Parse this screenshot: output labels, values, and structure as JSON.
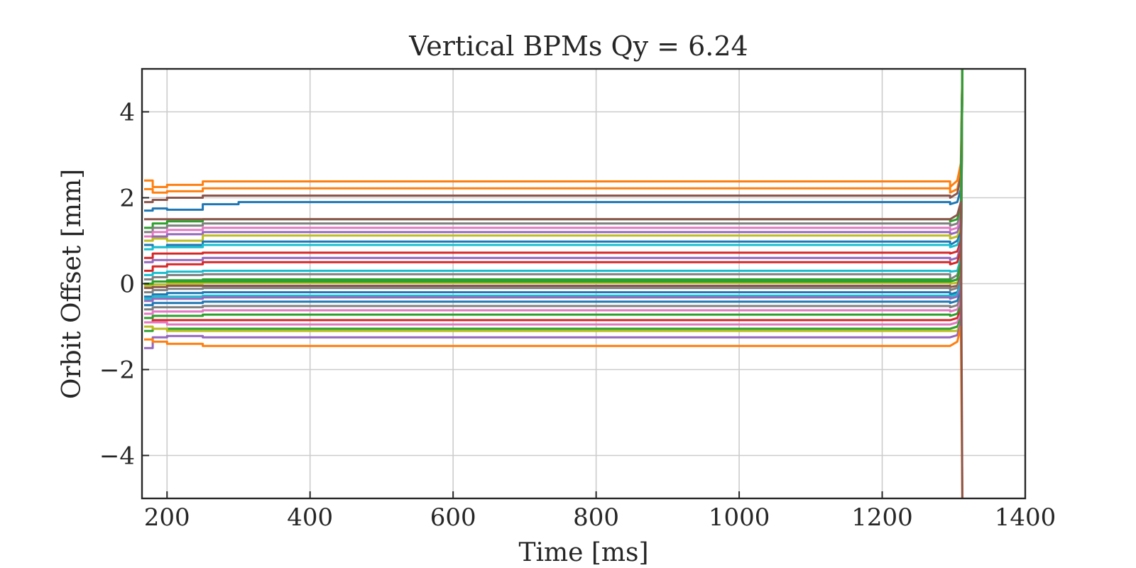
{
  "chart_data": {
    "type": "line",
    "title": "Vertical BPMs Qy = 6.24",
    "xlabel": "Time [ms]",
    "ylabel": "Orbit Offset [mm]",
    "xlim": [
      165,
      1400
    ],
    "ylim": [
      -5,
      5
    ],
    "xticks": [
      200,
      400,
      600,
      800,
      1000,
      1200,
      1400
    ],
    "xtick_labels": [
      "200",
      "400",
      "600",
      "800",
      "1000",
      "1200",
      "1400"
    ],
    "yticks": [
      4,
      2,
      0,
      -2,
      -4
    ],
    "ytick_labels": [
      "4",
      "2",
      "0",
      "−2",
      "−4"
    ],
    "grid": true,
    "legend": "none",
    "x": [
      168,
      180,
      200,
      250,
      300,
      1275,
      1295,
      1305,
      1310,
      1312
    ],
    "series": [
      {
        "color": "#ff7f0e",
        "values": [
          2.4,
          2.25,
          2.3,
          2.38,
          2.38,
          2.38,
          2.25,
          2.4,
          2.8,
          5.0
        ]
      },
      {
        "color": "#ff7f0e",
        "values": [
          2.2,
          2.12,
          2.15,
          2.22,
          2.22,
          2.22,
          2.12,
          2.2,
          2.6,
          5.0
        ]
      },
      {
        "color": "#8c564b",
        "values": [
          1.9,
          1.95,
          2.0,
          2.05,
          2.05,
          2.05,
          2.0,
          2.1,
          2.5,
          5.0
        ]
      },
      {
        "color": "#1f77b4",
        "values": [
          1.7,
          1.75,
          1.72,
          1.85,
          1.9,
          1.9,
          1.85,
          1.9,
          2.2,
          5.0
        ]
      },
      {
        "color": "#2ca02c",
        "values": [
          1.3,
          1.4,
          1.45,
          1.5,
          1.5,
          1.5,
          1.45,
          1.5,
          1.8,
          5.0
        ]
      },
      {
        "color": "#7f7f7f",
        "values": [
          1.2,
          1.3,
          1.35,
          1.4,
          1.4,
          1.4,
          1.35,
          1.4,
          1.6,
          5.0
        ]
      },
      {
        "color": "#e377c2",
        "values": [
          1.1,
          1.2,
          1.25,
          1.3,
          1.3,
          1.3,
          1.25,
          1.3,
          1.5,
          5.0
        ]
      },
      {
        "color": "#9467bd",
        "values": [
          1.0,
          1.1,
          1.15,
          1.2,
          1.2,
          1.2,
          1.15,
          1.2,
          1.4,
          5.0
        ]
      },
      {
        "color": "#bcbd22",
        "values": [
          1.0,
          1.05,
          1.0,
          1.12,
          1.12,
          1.12,
          1.05,
          1.1,
          1.3,
          5.0
        ]
      },
      {
        "color": "#1f77b4",
        "values": [
          0.9,
          0.85,
          0.9,
          0.98,
          0.98,
          0.98,
          0.9,
          1.0,
          1.2,
          5.0
        ]
      },
      {
        "color": "#17becf",
        "values": [
          0.8,
          0.85,
          0.85,
          0.9,
          0.9,
          0.9,
          0.85,
          0.9,
          1.1,
          5.0
        ]
      },
      {
        "color": "#d62728",
        "values": [
          0.6,
          0.7,
          0.7,
          0.72,
          0.72,
          0.72,
          0.7,
          0.75,
          1.0,
          5.0
        ]
      },
      {
        "color": "#9467bd",
        "values": [
          0.5,
          0.55,
          0.55,
          0.6,
          0.6,
          0.6,
          0.55,
          0.6,
          0.9,
          5.0
        ]
      },
      {
        "color": "#d62728",
        "values": [
          0.3,
          0.4,
          0.45,
          0.5,
          0.5,
          0.5,
          0.45,
          0.5,
          0.8,
          5.0
        ]
      },
      {
        "color": "#17becf",
        "values": [
          0.2,
          0.25,
          0.28,
          0.3,
          0.3,
          0.3,
          0.28,
          0.3,
          0.6,
          5.0
        ]
      },
      {
        "color": "#7f7f7f",
        "values": [
          0.1,
          0.15,
          0.2,
          0.22,
          0.22,
          0.22,
          0.1,
          0.2,
          0.5,
          5.0
        ]
      },
      {
        "color": "#2ca02c",
        "values": [
          0.0,
          0.05,
          0.08,
          0.1,
          0.1,
          0.1,
          0.05,
          0.1,
          0.4,
          5.0
        ]
      },
      {
        "color": "#bcbd22",
        "values": [
          -0.05,
          -0.02,
          0.0,
          0.02,
          0.02,
          0.02,
          0.0,
          0.02,
          0.3,
          5.0
        ]
      },
      {
        "color": "#8c564b",
        "values": [
          -0.1,
          -0.08,
          -0.05,
          -0.05,
          -0.05,
          -0.05,
          -0.08,
          -0.05,
          0.2,
          5.0
        ]
      },
      {
        "color": "#7f7f7f",
        "values": [
          -0.2,
          -0.15,
          -0.12,
          -0.1,
          -0.1,
          -0.1,
          -0.15,
          -0.1,
          0.1,
          5.0
        ]
      },
      {
        "color": "#1f77b4",
        "values": [
          -0.3,
          -0.25,
          -0.22,
          -0.2,
          -0.2,
          -0.2,
          -0.25,
          -0.2,
          0.0,
          5.0
        ]
      },
      {
        "color": "#17becf",
        "values": [
          -0.35,
          -0.3,
          -0.3,
          -0.28,
          -0.28,
          -0.28,
          -0.3,
          -0.25,
          0.0,
          5.0
        ]
      },
      {
        "color": "#9467bd",
        "values": [
          -0.4,
          -0.35,
          -0.35,
          -0.32,
          -0.32,
          -0.32,
          -0.35,
          -0.3,
          -0.1,
          5.0
        ]
      },
      {
        "color": "#1f77b4",
        "values": [
          -0.5,
          -0.45,
          -0.45,
          -0.42,
          -0.42,
          -0.42,
          -0.45,
          -0.4,
          -0.2,
          5.0
        ]
      },
      {
        "color": "#7f7f7f",
        "values": [
          -0.6,
          -0.55,
          -0.55,
          -0.52,
          -0.52,
          -0.52,
          -0.55,
          -0.5,
          -0.3,
          5.0
        ]
      },
      {
        "color": "#e377c2",
        "values": [
          -0.7,
          -0.65,
          -0.65,
          -0.62,
          -0.62,
          -0.62,
          -0.65,
          -0.6,
          -0.4,
          5.0
        ]
      },
      {
        "color": "#2ca02c",
        "values": [
          -0.8,
          -0.75,
          -0.75,
          -0.72,
          -0.72,
          -0.72,
          -0.75,
          -0.7,
          -0.5,
          5.0
        ]
      },
      {
        "color": "#d62728",
        "values": [
          -0.9,
          -0.85,
          -0.85,
          -0.85,
          -0.85,
          -0.85,
          -0.85,
          -0.8,
          -0.6,
          5.0
        ]
      },
      {
        "color": "#e377c2",
        "values": [
          -0.9,
          -0.9,
          -0.95,
          -0.95,
          -0.95,
          -0.95,
          -0.95,
          -0.9,
          -0.7,
          5.0
        ]
      },
      {
        "color": "#2ca02c",
        "values": [
          -1.1,
          -1.05,
          -1.05,
          -1.05,
          -1.05,
          -1.05,
          -1.05,
          -1.0,
          -0.8,
          5.0
        ]
      },
      {
        "color": "#bcbd22",
        "values": [
          -1.0,
          -1.05,
          -1.1,
          -1.1,
          -1.1,
          -1.1,
          -1.1,
          -1.1,
          -0.9,
          5.0
        ]
      },
      {
        "color": "#9467bd",
        "values": [
          -1.5,
          -1.25,
          -1.22,
          -1.25,
          -1.25,
          -1.25,
          -1.25,
          -1.2,
          -0.9,
          5.0
        ]
      },
      {
        "color": "#ff7f0e",
        "values": [
          -1.3,
          -1.35,
          -1.4,
          -1.45,
          -1.45,
          -1.45,
          -1.45,
          -1.35,
          -1.0,
          -5.0
        ]
      },
      {
        "color": "#2ca02c",
        "values": [
          0.0,
          0.05,
          0.05,
          0.05,
          0.05,
          0.05,
          0.05,
          0.1,
          0.5,
          5.0
        ]
      },
      {
        "color": "#8c564b",
        "values": [
          1.5,
          1.5,
          1.5,
          1.5,
          1.5,
          1.5,
          1.5,
          1.6,
          1.9,
          -5.0
        ]
      }
    ]
  }
}
